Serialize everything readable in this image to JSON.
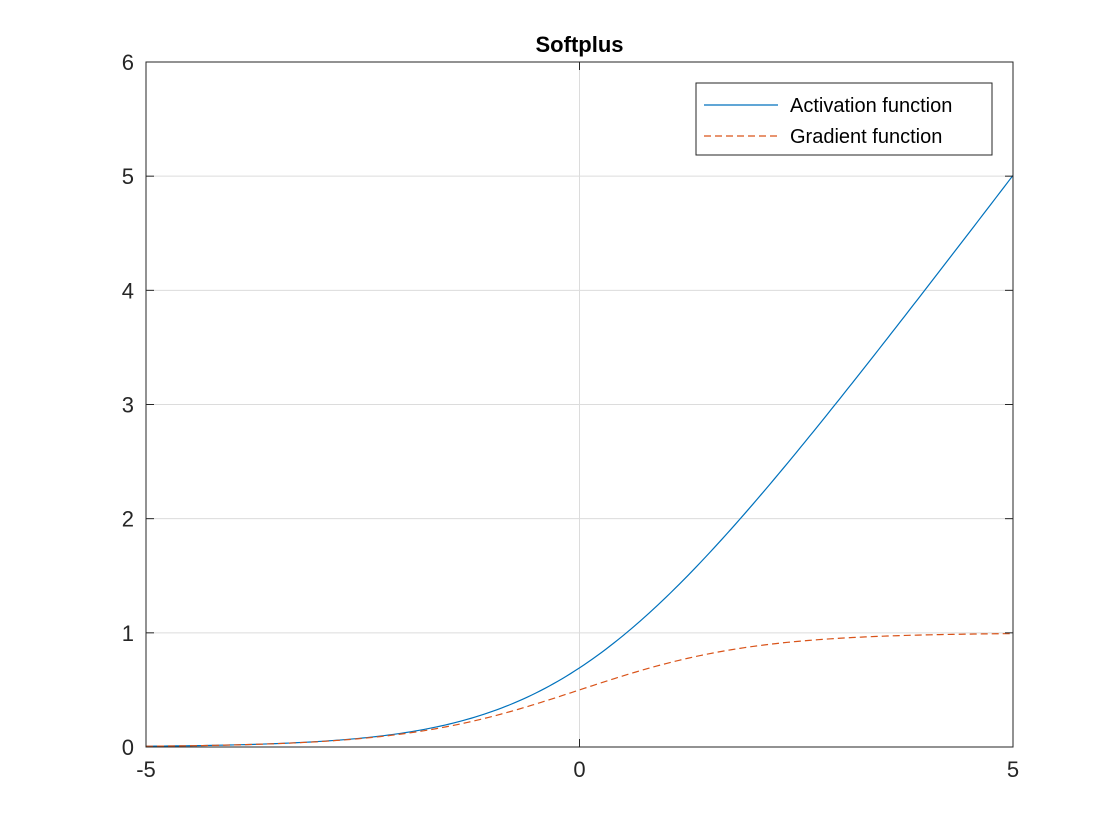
{
  "chart_data": {
    "type": "line",
    "title": "Softplus",
    "xlabel": "",
    "ylabel": "",
    "xlim": [
      -5,
      5
    ],
    "ylim": [
      0,
      6
    ],
    "xticks": [
      -5,
      0,
      5
    ],
    "xtick_labels": [
      "-5",
      "0",
      "5"
    ],
    "yticks": [
      0,
      1,
      2,
      3,
      4,
      5,
      6
    ],
    "ytick_labels": [
      "0",
      "1",
      "2",
      "3",
      "4",
      "5",
      "6"
    ],
    "grid": true,
    "legend_position": "top-right",
    "x": [
      -5,
      -4.5,
      -4,
      -3.5,
      -3,
      -2.5,
      -2,
      -1.5,
      -1,
      -0.5,
      0,
      0.5,
      1,
      1.5,
      2,
      2.5,
      3,
      3.5,
      4,
      4.5,
      5
    ],
    "series": [
      {
        "name": "Activation function",
        "color": "#0072BD",
        "line_style": "solid",
        "values": [
          0.0067,
          0.011,
          0.018,
          0.0298,
          0.0486,
          0.0789,
          0.1269,
          0.2014,
          0.3133,
          0.4741,
          0.6931,
          0.9741,
          1.3133,
          1.7014,
          2.1269,
          2.5789,
          3.0486,
          3.5298,
          4.0181,
          4.5111,
          5.0067
        ]
      },
      {
        "name": "Gradient function",
        "color": "#D95319",
        "line_style": "dashed",
        "values": [
          0.0067,
          0.011,
          0.018,
          0.0293,
          0.0474,
          0.0759,
          0.1192,
          0.1824,
          0.2689,
          0.3775,
          0.5,
          0.6225,
          0.7311,
          0.8176,
          0.8808,
          0.9241,
          0.9526,
          0.9707,
          0.982,
          0.989,
          0.9933
        ]
      }
    ]
  }
}
